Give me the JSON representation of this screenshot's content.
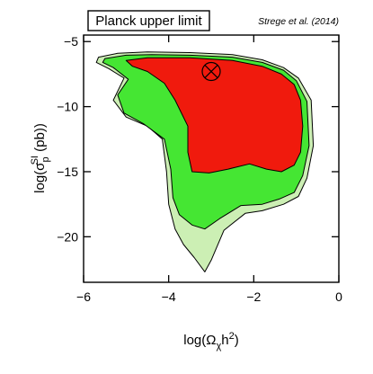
{
  "chart_data": {
    "type": "area",
    "title": "Planck upper limit",
    "credit": "Strege et al. (2014)",
    "xlabel": {
      "base": "log(Ω",
      "sub": "χ",
      "mid": "h",
      "sup": "2",
      "end": ")"
    },
    "ylabel": {
      "base": "log(σ",
      "sub": "p",
      "sup": "SI",
      "end": " (pb))"
    },
    "xlim": [
      -6,
      0
    ],
    "ylim": [
      -23.5,
      -4.5
    ],
    "xticks": [
      -6,
      -4,
      -2,
      0
    ],
    "yticks": [
      -5,
      -10,
      -15,
      -20
    ],
    "xtick_labels": [
      "−6",
      "−4",
      "−2",
      "0"
    ],
    "ytick_labels": [
      "−5",
      "−10",
      "−15",
      "−20"
    ],
    "grid": false,
    "best_fit_marker": {
      "x": -3.0,
      "y": -7.3
    },
    "series": [
      {
        "color": "#ccefb4",
        "points": [
          [
            -5.65,
            -6.2
          ],
          [
            -5.2,
            -5.9
          ],
          [
            -4.5,
            -5.8
          ],
          [
            -3.5,
            -5.85
          ],
          [
            -2.5,
            -6.0
          ],
          [
            -1.8,
            -6.4
          ],
          [
            -1.3,
            -7.0
          ],
          [
            -0.95,
            -7.8
          ],
          [
            -0.65,
            -9.5
          ],
          [
            -0.6,
            -13.0
          ],
          [
            -0.75,
            -15.5
          ],
          [
            -0.95,
            -16.9
          ],
          [
            -1.3,
            -17.5
          ],
          [
            -1.8,
            -18.0
          ],
          [
            -2.2,
            -18.2
          ],
          [
            -2.7,
            -19.5
          ],
          [
            -3.0,
            -21.8
          ],
          [
            -3.15,
            -22.7
          ],
          [
            -3.4,
            -21.6
          ],
          [
            -3.65,
            -20.6
          ],
          [
            -3.85,
            -19.4
          ],
          [
            -4.0,
            -17.5
          ],
          [
            -4.05,
            -15.0
          ],
          [
            -4.15,
            -12.5
          ],
          [
            -4.5,
            -11.5
          ],
          [
            -5.0,
            -10.8
          ],
          [
            -5.3,
            -9.5
          ],
          [
            -5.05,
            -7.8
          ],
          [
            -5.4,
            -7.1
          ],
          [
            -5.7,
            -6.6
          ]
        ]
      },
      {
        "color": "#45e633",
        "points": [
          [
            -5.5,
            -6.3
          ],
          [
            -5.0,
            -6.05
          ],
          [
            -4.4,
            -6.0
          ],
          [
            -3.5,
            -6.05
          ],
          [
            -2.5,
            -6.2
          ],
          [
            -1.8,
            -6.6
          ],
          [
            -1.3,
            -7.2
          ],
          [
            -1.0,
            -8.0
          ],
          [
            -0.75,
            -9.6
          ],
          [
            -0.7,
            -13.0
          ],
          [
            -0.85,
            -15.3
          ],
          [
            -1.05,
            -16.6
          ],
          [
            -1.4,
            -17.1
          ],
          [
            -1.8,
            -17.5
          ],
          [
            -2.3,
            -17.6
          ],
          [
            -2.8,
            -18.6
          ],
          [
            -3.15,
            -19.4
          ],
          [
            -3.45,
            -19.1
          ],
          [
            -3.75,
            -18.3
          ],
          [
            -3.9,
            -17.0
          ],
          [
            -3.95,
            -14.8
          ],
          [
            -4.1,
            -12.5
          ],
          [
            -4.6,
            -11.3
          ],
          [
            -5.05,
            -10.5
          ],
          [
            -5.2,
            -9.1
          ],
          [
            -4.95,
            -7.9
          ],
          [
            -5.3,
            -7.0
          ],
          [
            -5.55,
            -6.6
          ]
        ]
      },
      {
        "color": "#f01a0d",
        "points": [
          [
            -5.0,
            -6.45
          ],
          [
            -4.5,
            -6.25
          ],
          [
            -3.5,
            -6.25
          ],
          [
            -2.5,
            -6.45
          ],
          [
            -1.8,
            -6.9
          ],
          [
            -1.35,
            -7.5
          ],
          [
            -1.05,
            -8.3
          ],
          [
            -0.9,
            -9.5
          ],
          [
            -0.85,
            -11.5
          ],
          [
            -0.9,
            -13.5
          ],
          [
            -1.05,
            -14.5
          ],
          [
            -1.35,
            -15.0
          ],
          [
            -1.7,
            -14.8
          ],
          [
            -2.1,
            -14.4
          ],
          [
            -2.6,
            -14.8
          ],
          [
            -3.05,
            -15.1
          ],
          [
            -3.45,
            -15.0
          ],
          [
            -3.55,
            -13.5
          ],
          [
            -3.55,
            -11.5
          ],
          [
            -3.85,
            -9.5
          ],
          [
            -4.1,
            -8.2
          ],
          [
            -4.5,
            -7.3
          ],
          [
            -4.85,
            -6.9
          ]
        ]
      }
    ]
  }
}
